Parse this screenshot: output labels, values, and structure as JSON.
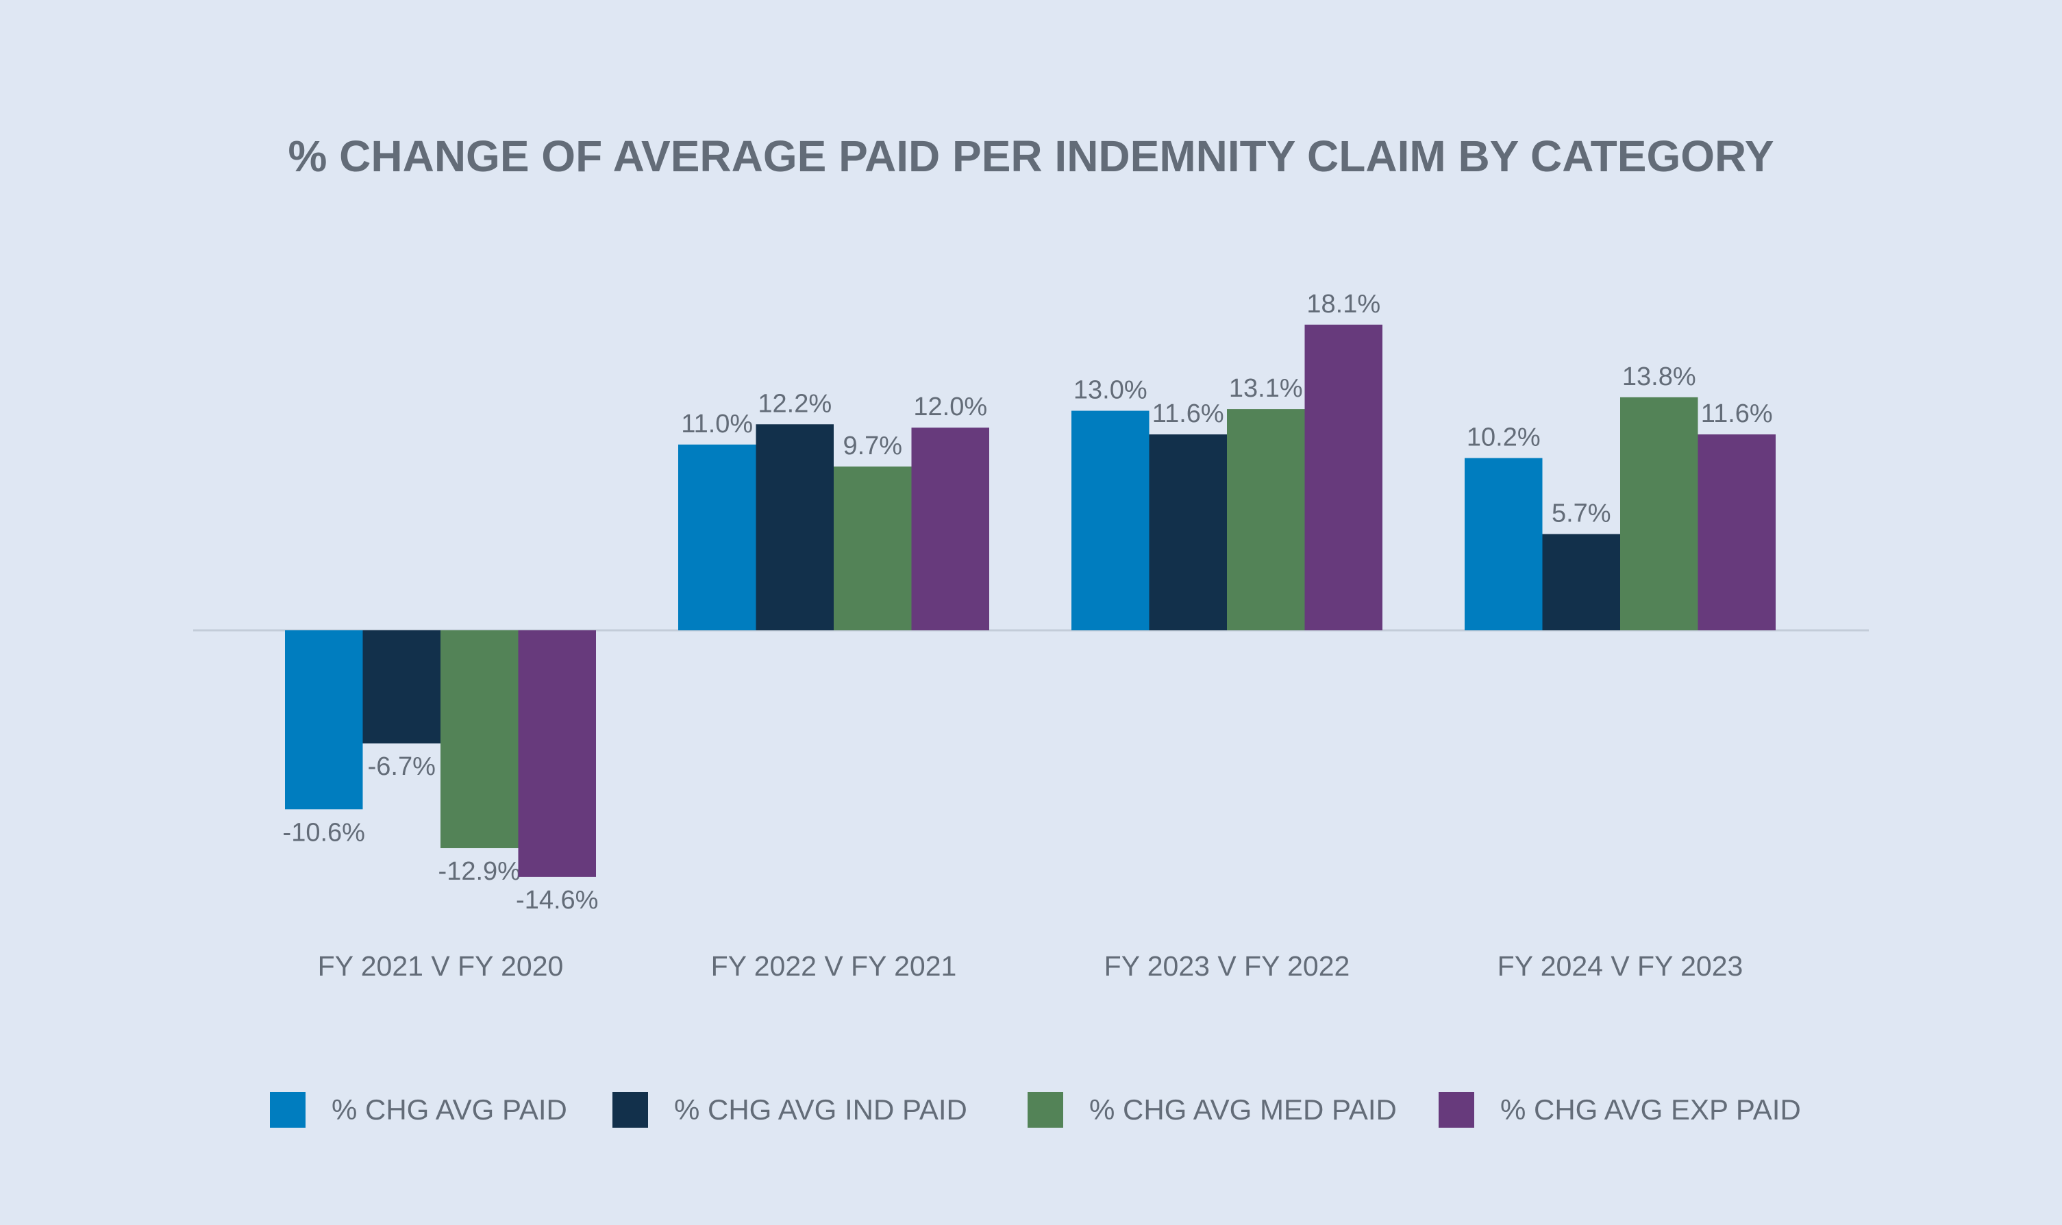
{
  "chart_data": {
    "type": "bar",
    "title": "% CHANGE OF AVERAGE PAID PER INDEMNITY CLAIM BY CATEGORY",
    "categories": [
      "FY 2021 V FY 2020",
      "FY 2022 V FY 2021",
      "FY 2023 V FY 2022",
      "FY 2024 V FY 2023"
    ],
    "series": [
      {
        "name": "% CHG AVG PAID",
        "color": "#007dbf",
        "values": [
          -10.6,
          11.0,
          13.0,
          10.2
        ],
        "labels": [
          "-10.6%",
          "11.0%",
          "13.0%",
          "10.2%"
        ]
      },
      {
        "name": "% CHG AVG IND PAID",
        "color": "#12304b",
        "values": [
          -6.7,
          12.2,
          11.6,
          5.7
        ],
        "labels": [
          "-6.7%",
          "12.2%",
          "11.6%",
          "5.7%"
        ]
      },
      {
        "name": "% CHG AVG MED PAID",
        "color": "#538357",
        "values": [
          -12.9,
          9.7,
          13.1,
          13.8
        ],
        "labels": [
          "-12.9%",
          "9.7%",
          "13.1%",
          "13.8%"
        ]
      },
      {
        "name": "% CHG AVG EXP PAID",
        "color": "#673a7c",
        "values": [
          -14.6,
          12.0,
          18.1,
          11.6
        ],
        "labels": [
          "-14.6%",
          "12.0%",
          "18.1%",
          "11.6%"
        ]
      }
    ],
    "xlabel": "",
    "ylabel": "",
    "ylim": [
      -19,
      22
    ],
    "grid": false,
    "legend_position": "bottom"
  }
}
